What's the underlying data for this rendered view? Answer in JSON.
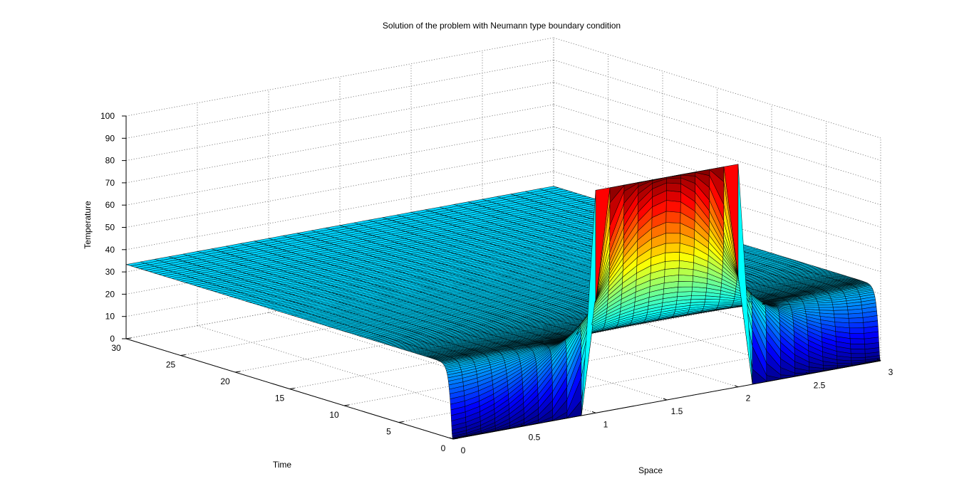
{
  "chart_data": {
    "type": "surface",
    "title": "Solution of the problem with Neumann type boundary condition",
    "xlabel": "Space",
    "ylabel": "Time",
    "zlabel": "Temperature",
    "xlim": [
      0,
      3
    ],
    "ylim": [
      0,
      30
    ],
    "zlim": [
      0,
      100
    ],
    "x_ticks": [
      0,
      0.5,
      1,
      1.5,
      2,
      2.5,
      3
    ],
    "x_tick_labels": [
      "0",
      "0.5",
      "1",
      "1.5",
      "2",
      "2.5",
      "3"
    ],
    "y_ticks": [
      0,
      5,
      10,
      15,
      20,
      25,
      30
    ],
    "y_tick_labels": [
      "0",
      "5",
      "10",
      "15",
      "20",
      "25",
      "30"
    ],
    "z_ticks": [
      0,
      10,
      20,
      30,
      40,
      50,
      60,
      70,
      80,
      90,
      100
    ],
    "z_tick_labels": [
      "0",
      "10",
      "20",
      "30",
      "40",
      "50",
      "60",
      "70",
      "80",
      "90",
      "100"
    ],
    "colormap": "jet",
    "grid": true,
    "initial_condition": {
      "value_inside": 100,
      "interval": [
        1,
        2
      ],
      "value_outside": 0
    },
    "boundary_condition": "Neumann",
    "mesh": {
      "space_points": 31,
      "time_points": 151
    }
  }
}
